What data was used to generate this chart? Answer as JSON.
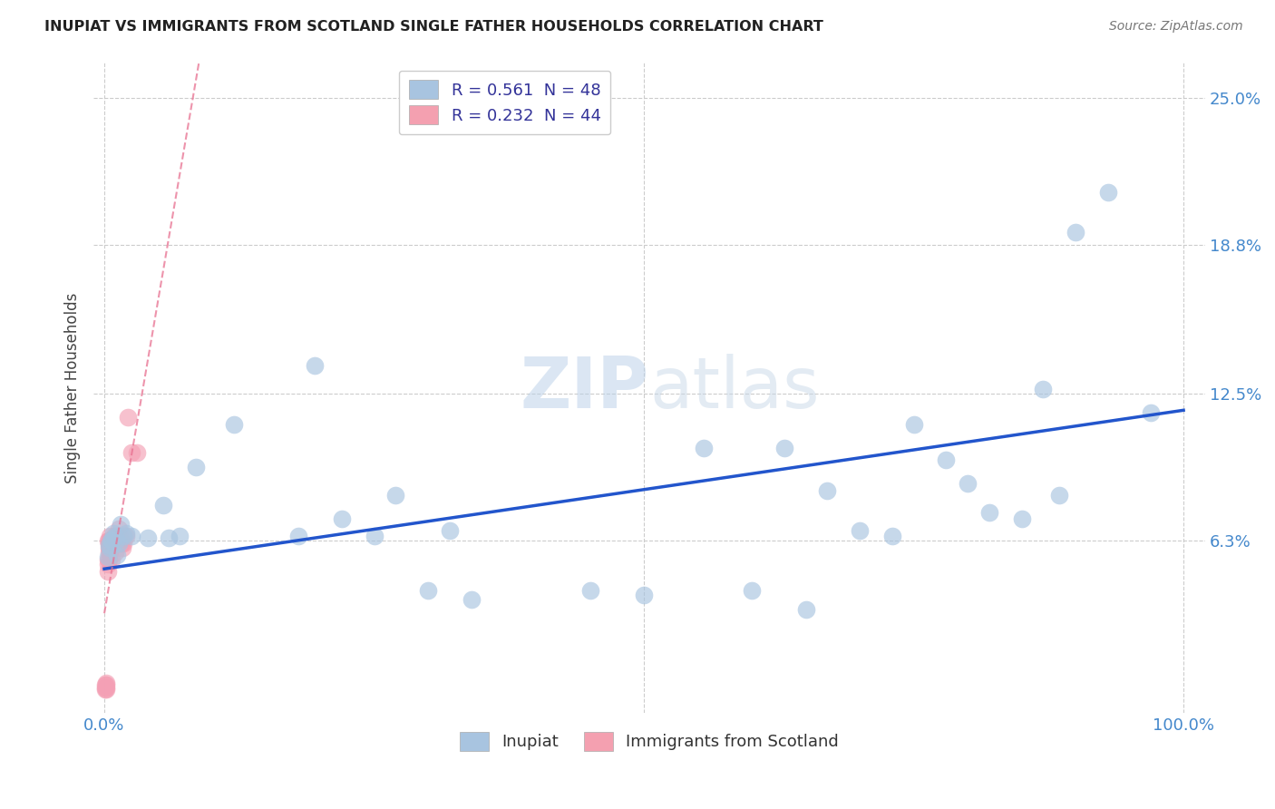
{
  "title": "INUPIAT VS IMMIGRANTS FROM SCOTLAND SINGLE FATHER HOUSEHOLDS CORRELATION CHART",
  "source": "Source: ZipAtlas.com",
  "ylabel_label": "Single Father Households",
  "legend_items": [
    {
      "label": "R = 0.561  N = 48",
      "color": "#a8c4e0"
    },
    {
      "label": "R = 0.232  N = 44",
      "color": "#f4a0b0"
    }
  ],
  "legend_bottom": [
    "Inupiat",
    "Immigrants from Scotland"
  ],
  "legend_bottom_colors": [
    "#a8c4e0",
    "#f4a0b0"
  ],
  "watermark_zip": "ZIP",
  "watermark_atlas": "atlas",
  "background_color": "#ffffff",
  "grid_color": "#cccccc",
  "blue_line_color": "#2255cc",
  "pink_line_color": "#e87090",
  "inupiat_scatter_color": "#a8c4e0",
  "scotland_scatter_color": "#f4a0b5",
  "inupiat_points_x": [
    0.003,
    0.004,
    0.005,
    0.006,
    0.007,
    0.008,
    0.009,
    0.01,
    0.011,
    0.012,
    0.013,
    0.015,
    0.018,
    0.02,
    0.025,
    0.04,
    0.055,
    0.06,
    0.07,
    0.085,
    0.12,
    0.18,
    0.195,
    0.22,
    0.25,
    0.27,
    0.3,
    0.32,
    0.34,
    0.45,
    0.5,
    0.555,
    0.6,
    0.63,
    0.65,
    0.67,
    0.7,
    0.73,
    0.75,
    0.78,
    0.8,
    0.82,
    0.85,
    0.87,
    0.885,
    0.9,
    0.93,
    0.97
  ],
  "inupiat_points_y": [
    0.056,
    0.061,
    0.06,
    0.063,
    0.063,
    0.066,
    0.064,
    0.065,
    0.063,
    0.057,
    0.062,
    0.07,
    0.065,
    0.066,
    0.065,
    0.064,
    0.078,
    0.064,
    0.065,
    0.094,
    0.112,
    0.065,
    0.137,
    0.072,
    0.065,
    0.082,
    0.042,
    0.067,
    0.038,
    0.042,
    0.04,
    0.102,
    0.042,
    0.102,
    0.034,
    0.084,
    0.067,
    0.065,
    0.112,
    0.097,
    0.087,
    0.075,
    0.072,
    0.127,
    0.082,
    0.193,
    0.21,
    0.117
  ],
  "scotland_points_x": [
    0.001,
    0.001,
    0.001,
    0.002,
    0.002,
    0.002,
    0.002,
    0.003,
    0.003,
    0.003,
    0.003,
    0.004,
    0.004,
    0.004,
    0.004,
    0.004,
    0.005,
    0.005,
    0.005,
    0.005,
    0.006,
    0.006,
    0.006,
    0.007,
    0.007,
    0.007,
    0.008,
    0.008,
    0.009,
    0.009,
    0.01,
    0.01,
    0.011,
    0.012,
    0.013,
    0.014,
    0.015,
    0.016,
    0.017,
    0.018,
    0.02,
    0.022,
    0.025,
    0.03
  ],
  "scotland_points_y": [
    0.0,
    0.001,
    0.002,
    0.0,
    0.001,
    0.002,
    0.003,
    0.053,
    0.063,
    0.055,
    0.05,
    0.058,
    0.062,
    0.06,
    0.063,
    0.055,
    0.06,
    0.063,
    0.065,
    0.058,
    0.063,
    0.06,
    0.062,
    0.063,
    0.055,
    0.062,
    0.062,
    0.063,
    0.062,
    0.065,
    0.063,
    0.058,
    0.063,
    0.062,
    0.068,
    0.065,
    0.063,
    0.062,
    0.06,
    0.062,
    0.065,
    0.115,
    0.1,
    0.1
  ],
  "xlim": [
    -0.01,
    1.02
  ],
  "ylim": [
    -0.01,
    0.265
  ],
  "yticks": [
    0.063,
    0.125,
    0.188,
    0.25
  ],
  "ytick_labels": [
    "6.3%",
    "12.5%",
    "18.8%",
    "25.0%"
  ],
  "xticks": [
    0.0,
    1.0
  ],
  "xtick_labels": [
    "0.0%",
    "100.0%"
  ],
  "blue_line_x": [
    0.0,
    1.0
  ],
  "blue_line_y": [
    0.051,
    0.118
  ],
  "pink_line_x": [
    0.0,
    0.03
  ],
  "pink_line_y": [
    0.047,
    0.07
  ]
}
